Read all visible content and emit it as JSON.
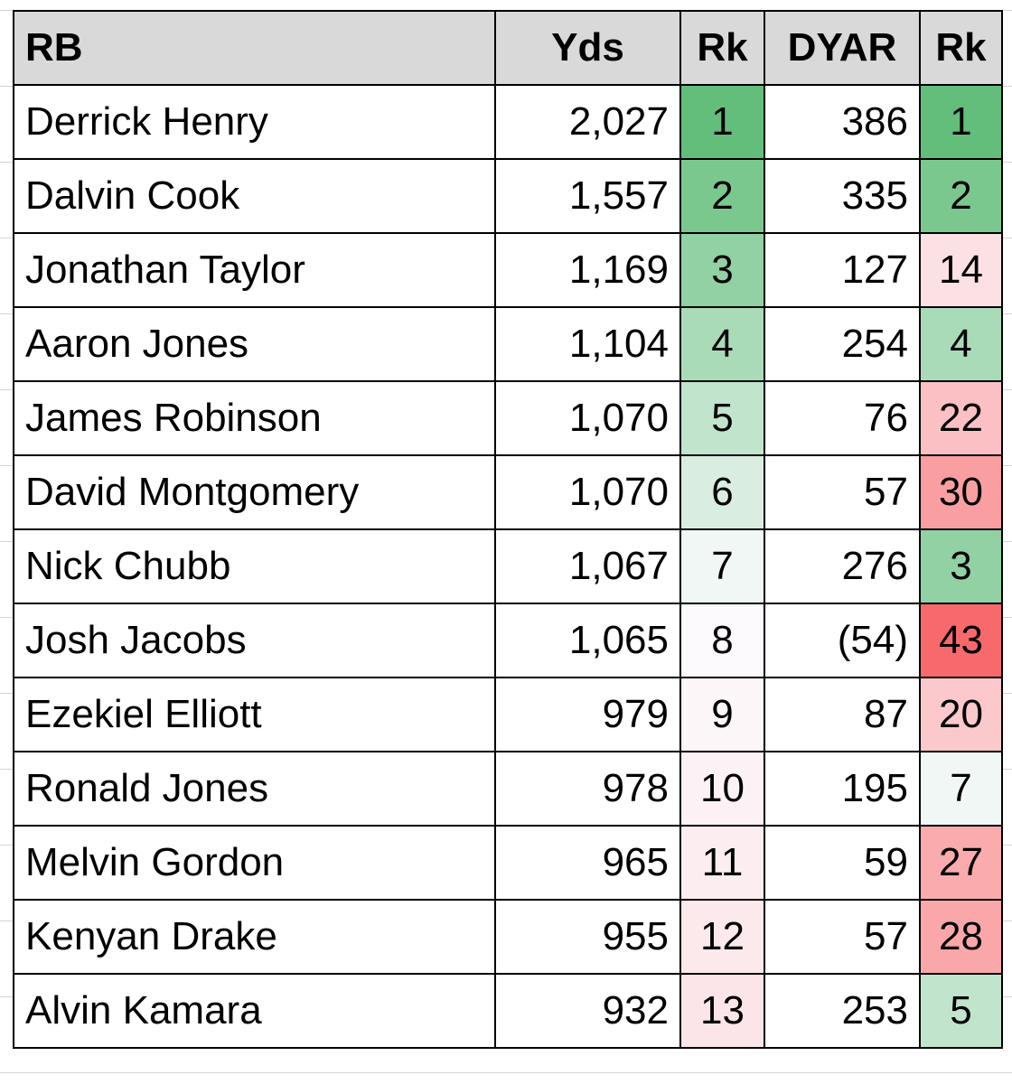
{
  "table": {
    "header": [
      "RB",
      "Yds",
      "Rk",
      "DYAR",
      "Rk"
    ],
    "rows": [
      [
        "Derrick Henry",
        "2,027",
        "1",
        "386",
        "1"
      ],
      [
        "Dalvin Cook",
        "1,557",
        "2",
        "335",
        "2"
      ],
      [
        "Jonathan Taylor",
        "1,169",
        "3",
        "127",
        "14"
      ],
      [
        "Aaron Jones",
        "1,104",
        "4",
        "254",
        "4"
      ],
      [
        "James Robinson",
        "1,070",
        "5",
        "76",
        "22"
      ],
      [
        "David Montgomery",
        "1,070",
        "6",
        "57",
        "30"
      ],
      [
        "Nick Chubb",
        "1,067",
        "7",
        "276",
        "3"
      ],
      [
        "Josh Jacobs",
        "1,065",
        "8",
        "(54)",
        "43"
      ],
      [
        "Ezekiel Elliott",
        "979",
        "9",
        "87",
        "20"
      ],
      [
        "Ronald Jones",
        "978",
        "10",
        "195",
        "7"
      ],
      [
        "Melvin Gordon",
        "965",
        "11",
        "59",
        "27"
      ],
      [
        "Kenyan Drake",
        "955",
        "12",
        "57",
        "28"
      ],
      [
        "Alvin Kamara",
        "932",
        "13",
        "253",
        "5"
      ]
    ]
  }
}
